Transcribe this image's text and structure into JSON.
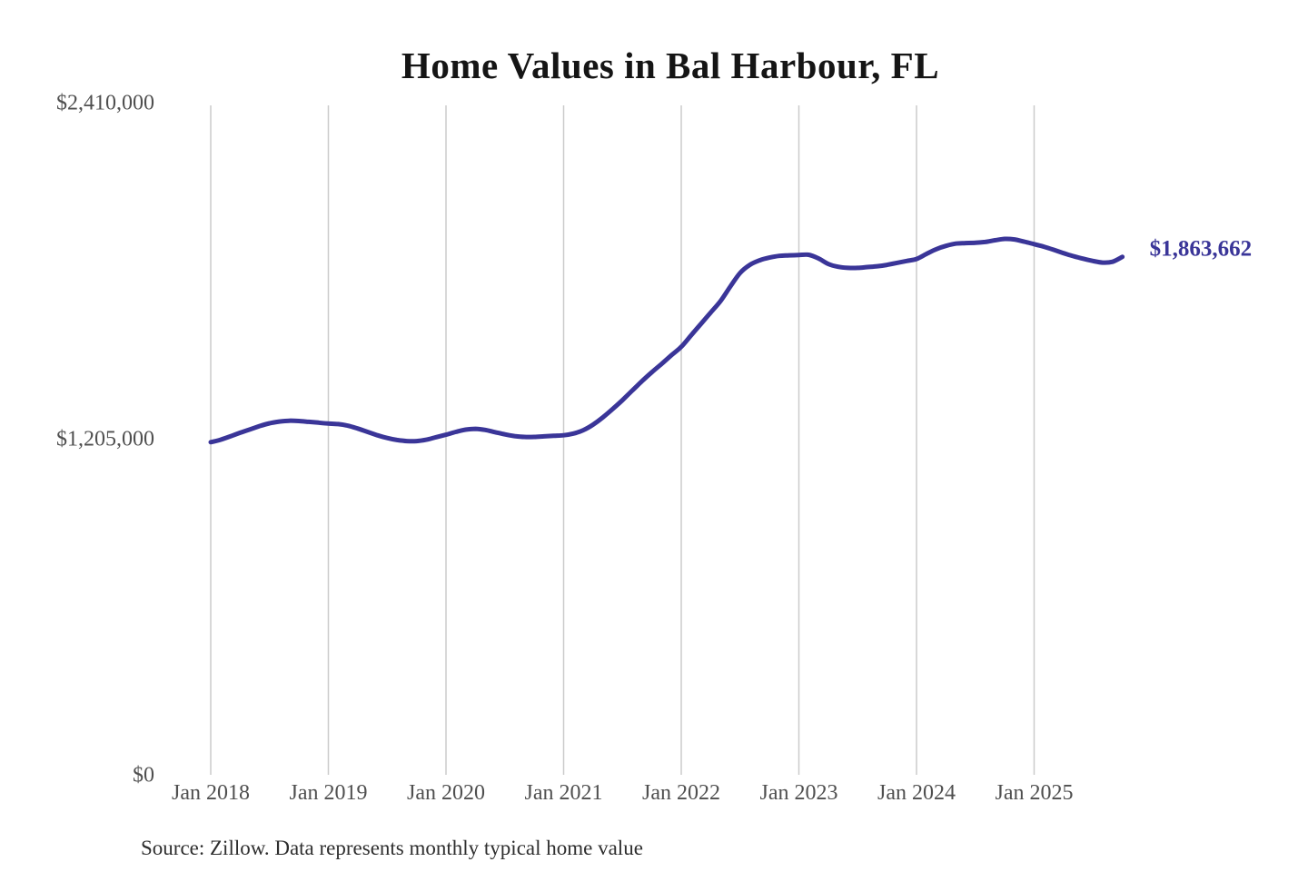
{
  "title": "Home Values in Bal Harbour, FL",
  "source_note": "Source: Zillow. Data represents monthly typical home value",
  "colors": {
    "line": "#3a3598",
    "grid": "#cbcbcb",
    "tick_label": "#4f4f4f",
    "title": "#151515",
    "source": "#2e2e2e",
    "background": "#ffffff"
  },
  "chart_data": {
    "type": "line",
    "title": "Home Values in Bal Harbour, FL",
    "xlabel": "",
    "ylabel": "",
    "x_interval": "monthly",
    "x_range": [
      "2018-01",
      "2025-10"
    ],
    "ylim": [
      0,
      2410000
    ],
    "grid": "vertical-only",
    "legend": "none",
    "x_tick_labels": [
      "Jan 2018",
      "Jan 2019",
      "Jan 2020",
      "Jan 2021",
      "Jan 2022",
      "Jan 2023",
      "Jan 2024",
      "Jan 2025"
    ],
    "y_ticks": [
      {
        "value": 0,
        "label": "$0"
      },
      {
        "value": 1205000,
        "label": "$1,205,000"
      },
      {
        "value": 2410000,
        "label": "$2,410,000"
      }
    ],
    "annotation": {
      "text": "$1,863,662",
      "value": 1863662,
      "position": "end-of-line"
    },
    "series": [
      {
        "name": "Typical home value",
        "start_month": "2018-01",
        "values": [
          1199000,
          1208000,
          1220000,
          1233000,
          1245000,
          1257000,
          1267000,
          1273000,
          1276000,
          1275000,
          1272000,
          1269000,
          1266000,
          1264000,
          1258000,
          1248000,
          1236000,
          1224000,
          1214000,
          1207000,
          1203000,
          1203000,
          1208000,
          1217000,
          1226000,
          1236000,
          1244000,
          1247000,
          1243000,
          1235000,
          1227000,
          1221000,
          1218000,
          1218000,
          1220000,
          1222000,
          1224000,
          1230000,
          1242000,
          1262000,
          1288000,
          1318000,
          1350000,
          1384000,
          1418000,
          1450000,
          1480000,
          1511000,
          1541000,
          1582000,
          1623000,
          1664000,
          1705000,
          1757000,
          1806000,
          1835000,
          1851000,
          1861000,
          1867000,
          1869000,
          1870000,
          1871000,
          1858000,
          1838000,
          1828000,
          1824000,
          1824000,
          1827000,
          1830000,
          1835000,
          1842000,
          1849000,
          1856000,
          1874000,
          1891000,
          1903000,
          1911000,
          1913000,
          1914000,
          1917000,
          1923000,
          1928000,
          1926000,
          1918000,
          1909000,
          1900000,
          1889000,
          1877000,
          1866000,
          1857000,
          1849000,
          1843000,
          1846000,
          1863662
        ]
      }
    ]
  }
}
